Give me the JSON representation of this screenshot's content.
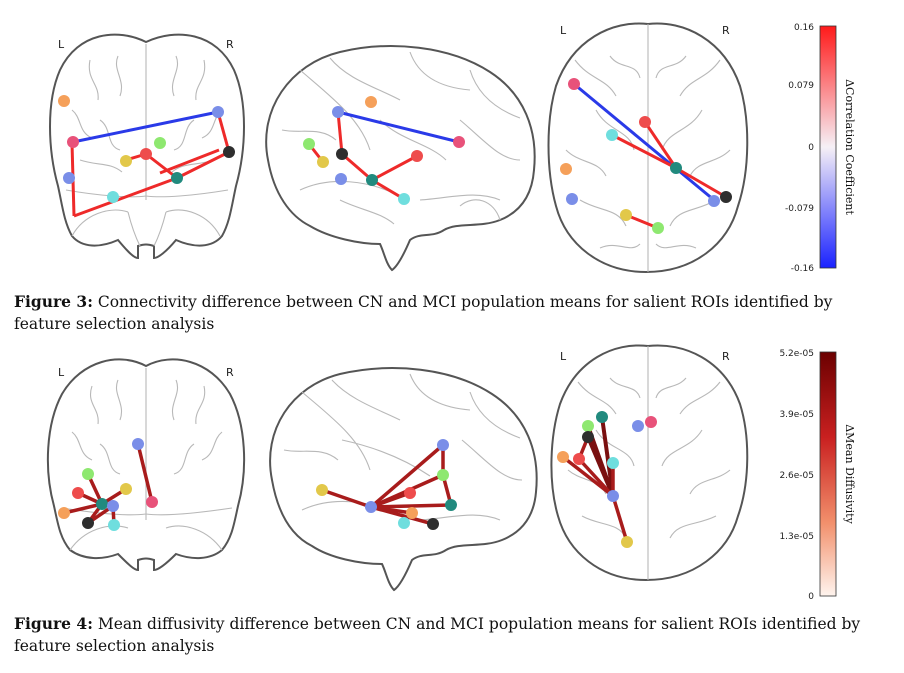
{
  "figure3": {
    "caption_label": "Figure 3:",
    "caption_text": " Connectivity difference between CN and MCI population means for salient ROIs identified by feature selection analysis",
    "orientation_left": "L",
    "orientation_right": "R",
    "colorbar_title": "ΔCorrelation Coefficient",
    "colorbar_ticks": [
      "0.16",
      "0.079",
      "0",
      "-0.079",
      "-0.16"
    ]
  },
  "figure4": {
    "caption_label": "Figure 4:",
    "caption_text": " Mean diffusivity difference between CN and MCI population means for salient ROIs identified by feature selection analysis",
    "orientation_left": "L",
    "orientation_right": "R",
    "colorbar_title": "ΔMean Diffusivity",
    "colorbar_ticks": [
      "5.2e-05",
      "3.9e-05",
      "2.6e-05",
      "1.3e-05",
      "0"
    ]
  },
  "colors": {
    "positive_edge": "#ee2a2a",
    "negative_edge": "#2a3ae8",
    "diffusivity_edge": "#a81c1c",
    "node_orange": "#f5a05a",
    "node_pink": "#e8527a",
    "node_blue": "#7a8ee8",
    "node_lightblue": "#6fdede",
    "node_yellow": "#e2c84a",
    "node_green": "#8ee870",
    "node_teal": "#218a7e",
    "node_dark": "#2e2e2e",
    "node_red": "#ee4c4c"
  }
}
